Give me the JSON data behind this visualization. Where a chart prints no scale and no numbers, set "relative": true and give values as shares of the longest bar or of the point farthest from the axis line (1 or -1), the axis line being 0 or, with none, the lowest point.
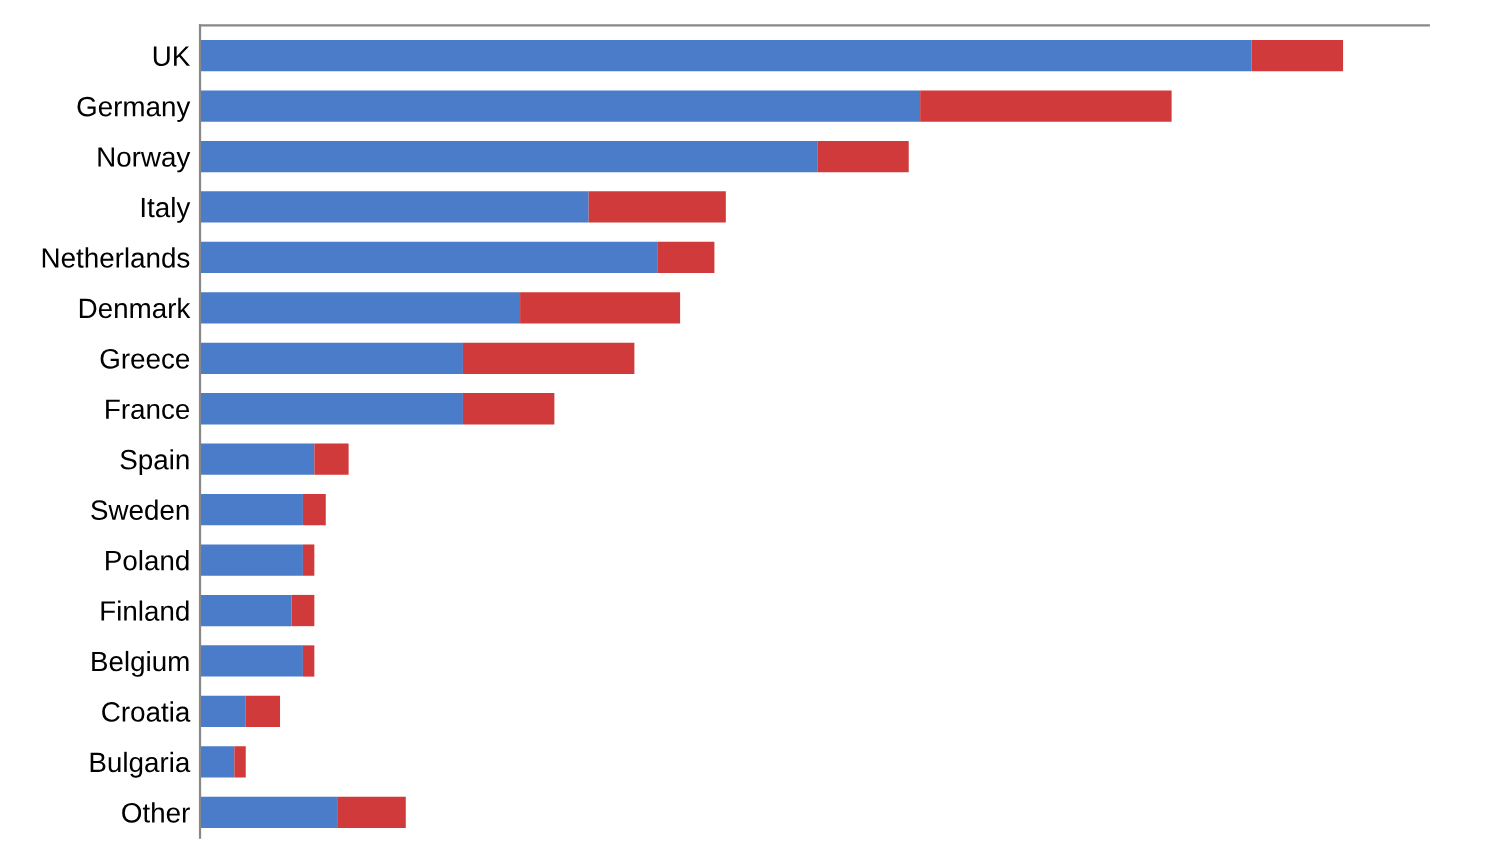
{
  "chart_data": {
    "type": "bar",
    "orientation": "horizontal",
    "stacked": true,
    "relative": true,
    "categories": [
      "UK",
      "Germany",
      "Norway",
      "Italy",
      "Netherlands",
      "Denmark",
      "Greece",
      "France",
      "Spain",
      "Sweden",
      "Poland",
      "Finland",
      "Belgium",
      "Croatia",
      "Bulgaria",
      "Other"
    ],
    "series": [
      {
        "color": "#4a7cc9",
        "values": [
          0.92,
          0.63,
          0.54,
          0.34,
          0.4,
          0.28,
          0.23,
          0.23,
          0.1,
          0.09,
          0.09,
          0.08,
          0.09,
          0.04,
          0.03,
          0.12
        ]
      },
      {
        "color": "#d03a3a",
        "values": [
          0.08,
          0.22,
          0.08,
          0.12,
          0.05,
          0.14,
          0.15,
          0.08,
          0.03,
          0.02,
          0.01,
          0.02,
          0.01,
          0.03,
          0.01,
          0.06
        ]
      }
    ],
    "grid": false,
    "legend": false
  }
}
